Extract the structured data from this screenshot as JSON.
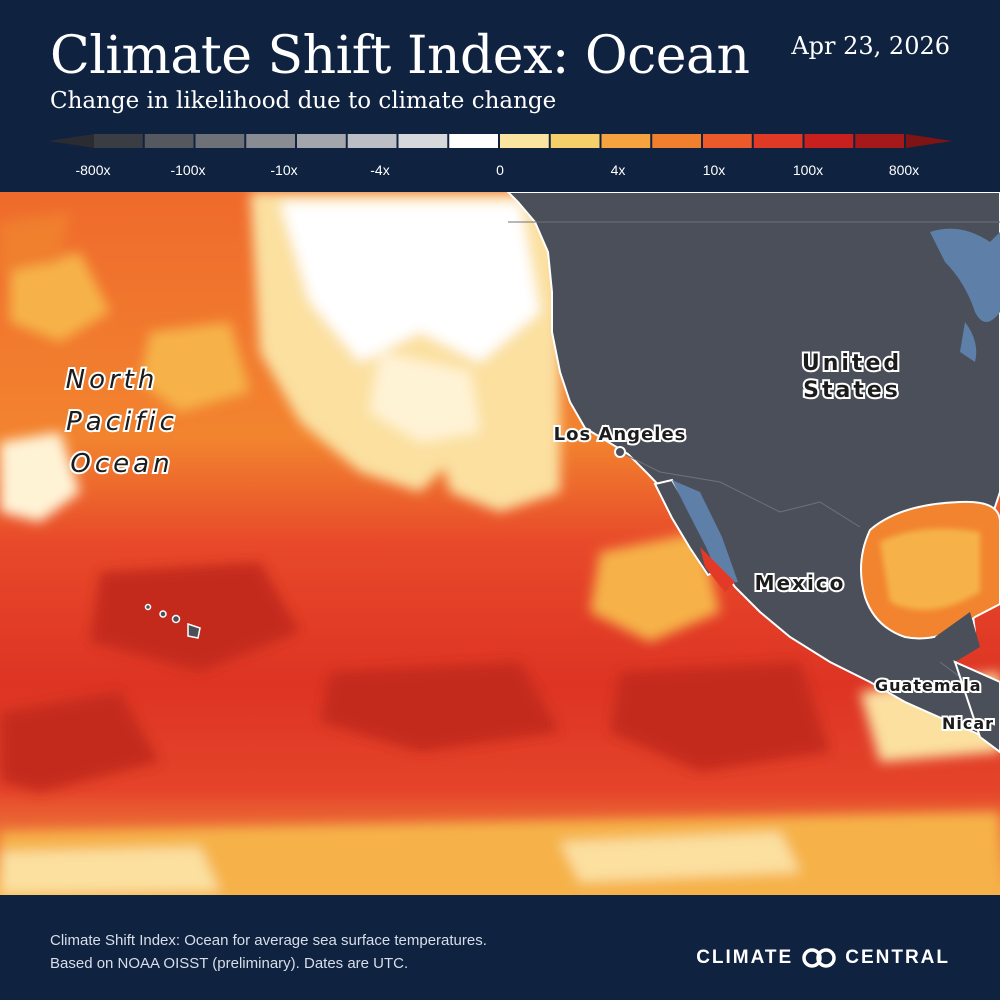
{
  "header": {
    "title": "Climate Shift Index: Ocean",
    "date": "Apr 23, 2026",
    "subtitle": "Change in likelihood due to climate change"
  },
  "legend": {
    "colors": [
      "#3a3d44",
      "#55585f",
      "#6e7178",
      "#898c92",
      "#a3a6ab",
      "#bcbfc4",
      "#d6d8dc",
      "#ffffff",
      "#fbe4a0",
      "#f6cf6a",
      "#f4a33e",
      "#f07f2e",
      "#ec5a2c",
      "#e03a26",
      "#c8201e",
      "#a5191a"
    ],
    "end_left_color": "#2a2c31",
    "end_right_color": "#7e1414",
    "ticks": [
      "-800x",
      "-100x",
      "-10x",
      "-4x",
      "0",
      "4x",
      "10x",
      "100x",
      "800x"
    ]
  },
  "map": {
    "labels": {
      "ocean_line1": "North",
      "ocean_line2": "Pacific",
      "ocean_line3": "Ocean",
      "us_line1": "United",
      "us_line2": "States",
      "los_angeles": "Los Angeles",
      "mexico": "Mexico",
      "guatemala": "Guatemala",
      "nicaragua": "Nicar"
    },
    "colors": {
      "land": "#4a4f59",
      "water_inland": "#5e7fa8",
      "sst_deep": "#c42a1f",
      "sst_red": "#e23a26",
      "sst_orange": "#ef6a2c",
      "sst_light": "#f5a53c",
      "sst_pale": "#fbe0a0",
      "sst_neutral": "#ffffff"
    }
  },
  "footer": {
    "note_line1": "Climate Shift Index: Ocean for average sea surface temperatures.",
    "note_line2": "Based on NOAA OISST (preliminary). Dates are UTC.",
    "brand_left": "CLIMATE",
    "brand_right": "CENTRAL"
  }
}
